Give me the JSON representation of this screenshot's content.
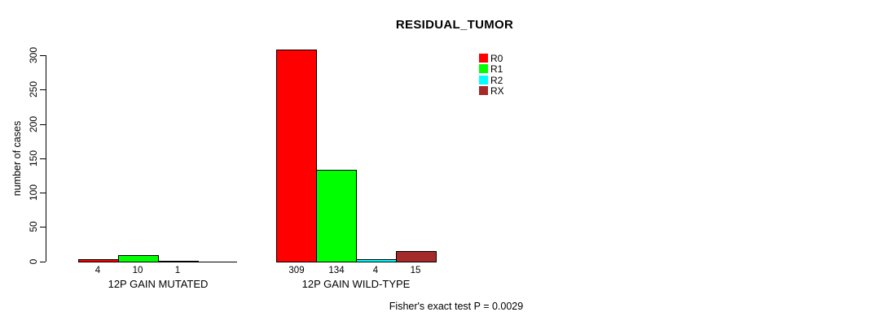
{
  "chart_data": {
    "type": "bar",
    "title": "RESIDUAL_TUMOR",
    "ylabel": "number of cases",
    "xlabel": "",
    "ylim": [
      0,
      300
    ],
    "yticks": [
      0,
      50,
      100,
      150,
      200,
      250,
      300
    ],
    "grid": false,
    "legend_position": "top-right",
    "categories": [
      "12P GAIN MUTATED",
      "12P GAIN WILD-TYPE"
    ],
    "series": [
      {
        "name": "R0",
        "color": "#ff0000",
        "values": [
          4,
          309
        ]
      },
      {
        "name": "R1",
        "color": "#00ff00",
        "values": [
          10,
          134
        ]
      },
      {
        "name": "R2",
        "color": "#00ffff",
        "values": [
          1,
          4
        ]
      },
      {
        "name": "RX",
        "color": "#a52a2a",
        "values": [
          null,
          15
        ]
      }
    ],
    "bar_value_labels": [
      [
        "4",
        "10",
        "1",
        ""
      ],
      [
        "309",
        "134",
        "4",
        "15"
      ]
    ],
    "footnote": "Fisher's exact test P = 0.0029"
  }
}
